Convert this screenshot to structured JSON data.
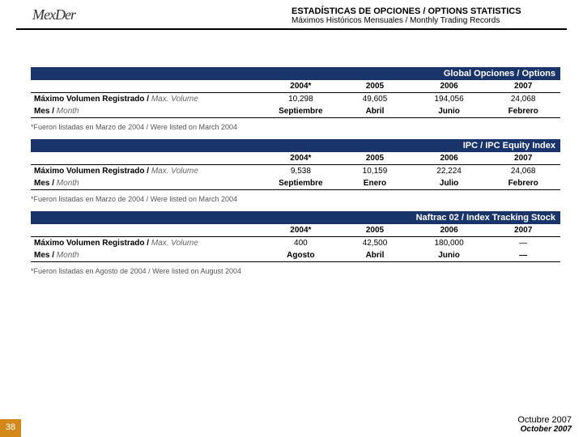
{
  "logo_text": "MexDer",
  "header": {
    "title": "ESTADÍSTICAS DE OPCIONES / OPTIONS STATISTICS",
    "subtitle": "Máximos Históricos Mensuales / Monthly Trading Records"
  },
  "colors": {
    "section_bar_bg": "#18346b",
    "section_bar_text": "#ffffff",
    "page_tab_bg": "#d3891a"
  },
  "years": [
    "2004*",
    "2005",
    "2006",
    "2007"
  ],
  "row_labels": {
    "volume": "Máximo Volumen Registrado /",
    "volume_it": "Max. Volume",
    "month": "Mes /",
    "month_it": "Month"
  },
  "sections": [
    {
      "title": "Global Opciones / Options",
      "volume": [
        "10,298",
        "49,605",
        "194,056",
        "24,068"
      ],
      "month": [
        "Septiembre",
        "Abril",
        "Junio",
        "Febrero"
      ],
      "note": "*Fueron listadas en Marzo de 2004 / Were listed on March 2004"
    },
    {
      "title": "IPC / IPC Equity Index",
      "volume": [
        "9,538",
        "10,159",
        "22,224",
        "24,068"
      ],
      "month": [
        "Septiembre",
        "Enero",
        "Julio",
        "Febrero"
      ],
      "note": "*Fueron listadas en Marzo de 2004 / Were listed on March 2004"
    },
    {
      "title": "Naftrac 02 / Index Tracking Stock",
      "volume": [
        "400",
        "42,500",
        "180,000",
        "—"
      ],
      "month": [
        "Agosto",
        "Abril",
        "Junio",
        "—"
      ],
      "note": "*Fueron listadas en Agosto de 2004 / Were listed on August 2004"
    }
  ],
  "footer": {
    "page_number": "38",
    "main": "Octubre 2007",
    "sub": "October 2007"
  }
}
